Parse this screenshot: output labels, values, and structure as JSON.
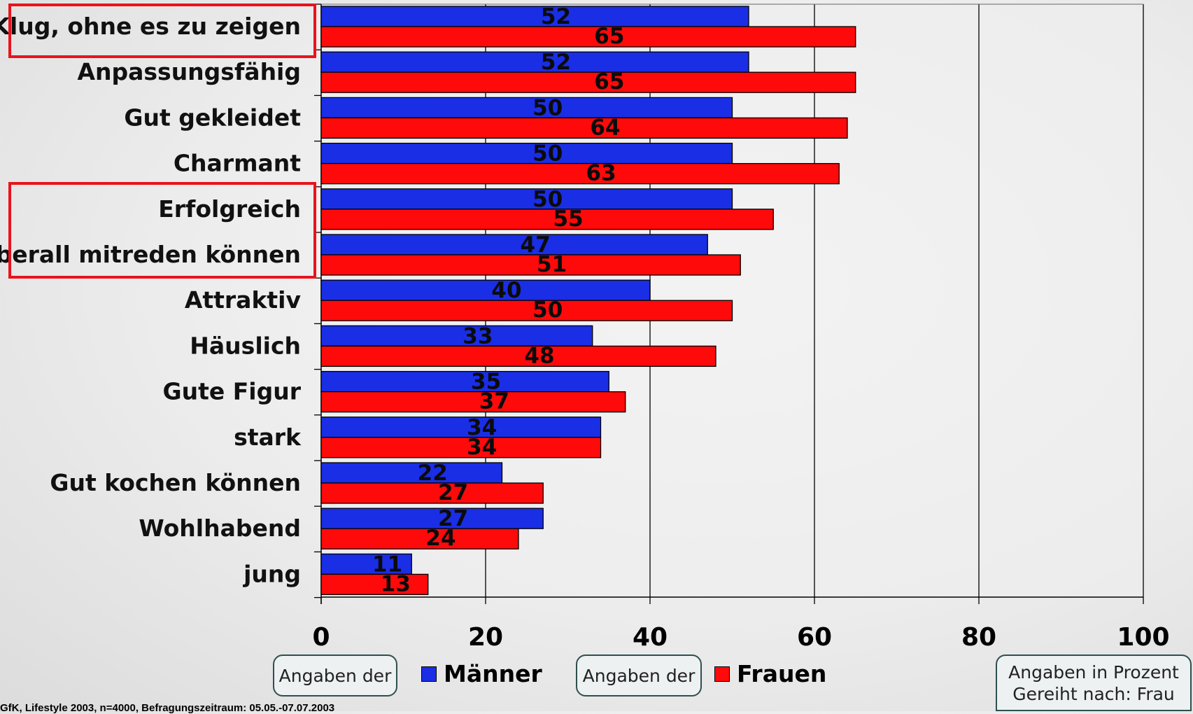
{
  "chart_data": {
    "type": "bar",
    "orientation": "horizontal",
    "categories": [
      "Klug, ohne es zu zeigen",
      "Anpassungsfähig",
      "Gut gekleidet",
      "Charmant",
      "Erfolgreich",
      "Überall mitreden können",
      "Attraktiv",
      "Häuslich",
      "Gute Figur",
      "stark",
      "Gut kochen können",
      "Wohlhabend",
      "jung"
    ],
    "series": [
      {
        "name": "Männer",
        "color": "#1a2ee6",
        "values": [
          52,
          52,
          50,
          50,
          50,
          47,
          40,
          33,
          35,
          34,
          22,
          27,
          11
        ]
      },
      {
        "name": "Frauen",
        "color": "#ff0a0a",
        "values": [
          65,
          65,
          64,
          63,
          55,
          51,
          50,
          48,
          37,
          34,
          27,
          24,
          13
        ]
      }
    ],
    "xlim": [
      0,
      100
    ],
    "xticks": [
      "0",
      "20",
      "40",
      "60",
      "80",
      "100"
    ],
    "grid": true,
    "highlighted_categories": [
      "Klug, ohne es zu zeigen",
      "Erfolgreich",
      "Überall mitreden können"
    ]
  },
  "legend": {
    "pill_text": "Angaben der",
    "men_label": "Männer",
    "women_label": "Frauen"
  },
  "note": {
    "line1": "Angaben in Prozent",
    "line2": "Gereiht nach: Frau"
  },
  "source": "GfK, Lifestyle 2003, n=4000, Befragungszeitraum: 05.05.-07.07.2003"
}
